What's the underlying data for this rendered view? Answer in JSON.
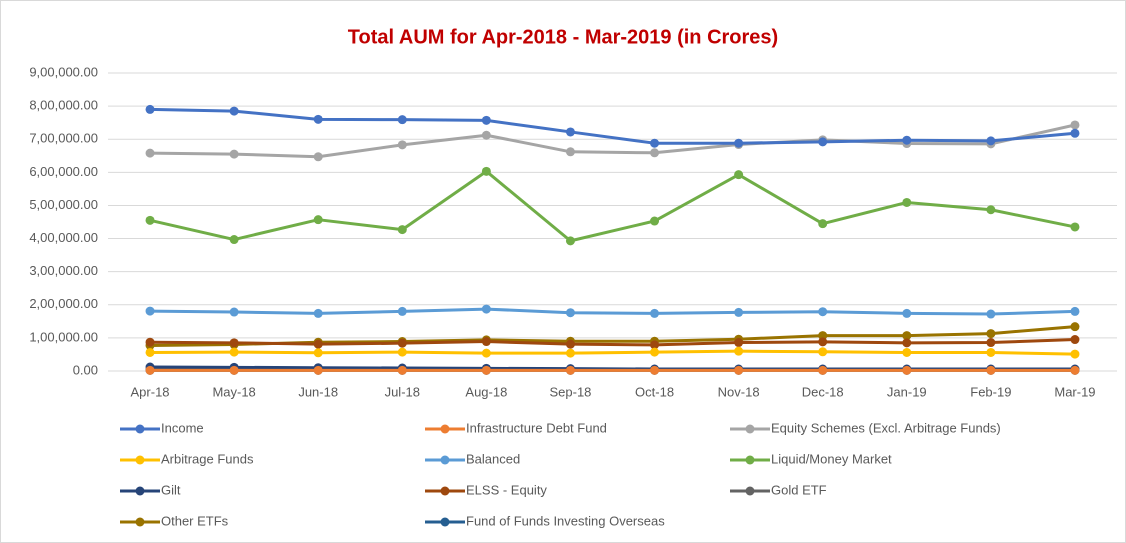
{
  "chart_data": {
    "type": "line",
    "title": "Total AUM for Apr-2018 - Mar-2019 (in Crores)",
    "categories": [
      "Apr-18",
      "May-18",
      "Jun-18",
      "Jul-18",
      "Aug-18",
      "Sep-18",
      "Oct-18",
      "Nov-18",
      "Dec-18",
      "Jan-19",
      "Feb-19",
      "Mar-19"
    ],
    "ylim": [
      0,
      900000
    ],
    "yticks": [
      {
        "value": 0,
        "label": "0.00"
      },
      {
        "value": 100000,
        "label": "1,00,000.00"
      },
      {
        "value": 200000,
        "label": "2,00,000.00"
      },
      {
        "value": 300000,
        "label": "3,00,000.00"
      },
      {
        "value": 400000,
        "label": "4,00,000.00"
      },
      {
        "value": 500000,
        "label": "5,00,000.00"
      },
      {
        "value": 600000,
        "label": "6,00,000.00"
      },
      {
        "value": 700000,
        "label": "7,00,000.00"
      },
      {
        "value": 800000,
        "label": "8,00,000.00"
      },
      {
        "value": 900000,
        "label": "9,00,000.00"
      }
    ],
    "grid": true,
    "series": [
      {
        "name": "Income",
        "color": "#4472c4",
        "values": [
          790000,
          785000,
          760000,
          759000,
          757000,
          722000,
          688000,
          688000,
          692000,
          697000,
          695000,
          718000
        ]
      },
      {
        "name": "Infrastructure Debt Fund",
        "color": "#ed7d31",
        "values": [
          2000,
          2000,
          2000,
          2000,
          2000,
          2000,
          2000,
          2000,
          2000,
          2000,
          2000,
          2000
        ]
      },
      {
        "name": "Equity Schemes (Excl. Arbitrage Funds)",
        "color": "#a5a5a5",
        "values": [
          658000,
          655000,
          647000,
          683000,
          712000,
          662000,
          659000,
          684000,
          698000,
          687000,
          686000,
          743000
        ]
      },
      {
        "name": "Arbitrage Funds",
        "color": "#ffc000",
        "values": [
          56000,
          57000,
          55000,
          57000,
          54000,
          54000,
          57000,
          60000,
          58000,
          56000,
          56000,
          51000
        ]
      },
      {
        "name": "Balanced",
        "color": "#5b9bd5",
        "values": [
          181000,
          178000,
          174000,
          180000,
          187000,
          176000,
          174000,
          177000,
          179000,
          174000,
          172000,
          180000
        ]
      },
      {
        "name": "Liquid/Money Market",
        "color": "#70ad47",
        "values": [
          455000,
          397000,
          457000,
          427000,
          603000,
          393000,
          453000,
          593000,
          445000,
          509000,
          487000,
          435000
        ]
      },
      {
        "name": "Gilt",
        "color": "#264478",
        "values": [
          12000,
          11000,
          10000,
          9000,
          8000,
          7000,
          6000,
          6000,
          6000,
          6000,
          6000,
          6000
        ]
      },
      {
        "name": "ELSS - Equity",
        "color": "#9e480e",
        "values": [
          87000,
          85000,
          81000,
          84000,
          89000,
          81000,
          79000,
          86000,
          88000,
          85000,
          86000,
          95000
        ]
      },
      {
        "name": "Gold ETF",
        "color": "#636363",
        "values": [
          5000,
          5000,
          5000,
          5000,
          5000,
          4000,
          4000,
          4000,
          4000,
          4000,
          4000,
          4000
        ]
      },
      {
        "name": "Other ETFs",
        "color": "#997300",
        "values": [
          77000,
          80000,
          87000,
          89000,
          94000,
          90000,
          90000,
          96000,
          107000,
          107000,
          113000,
          134000
        ]
      },
      {
        "name": "Fund of Funds Investing Overseas",
        "color": "#255e91",
        "values": [
          2000,
          2000,
          2000,
          2000,
          2000,
          2000,
          2000,
          2000,
          2000,
          2000,
          2000,
          2000
        ]
      }
    ]
  }
}
